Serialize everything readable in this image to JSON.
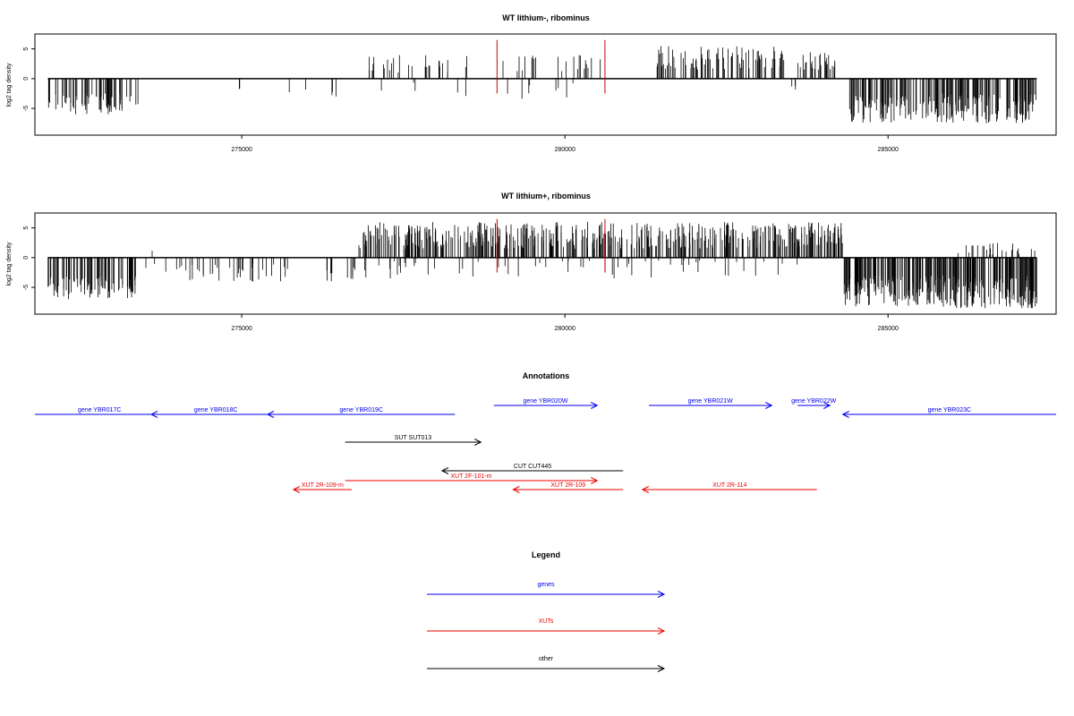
{
  "chart_data": [
    {
      "type": "bar",
      "title": "WT lithium-, ribominus",
      "xlabel": "",
      "ylabel": "log2 tag density",
      "xlim": [
        271800,
        287600
      ],
      "ylim": [
        -9.5,
        7.5
      ],
      "x_ticks": [
        275000,
        280000,
        285000
      ],
      "x_tick_labels": [
        "275000",
        "280000",
        "285000"
      ],
      "y_ticks": [
        5,
        0,
        -5
      ],
      "y_tick_labels": [
        "5",
        "0",
        "-5"
      ],
      "density_profile": [
        {
          "from": 272000,
          "to": 273400,
          "min": -6,
          "max": -2.5,
          "sign": -1,
          "count": 70
        },
        {
          "from": 274950,
          "to": 275000,
          "min": -2,
          "max": -1.2,
          "sign": -1,
          "count": 2
        },
        {
          "from": 275700,
          "to": 276000,
          "min": -3.8,
          "max": -1,
          "sign": -1,
          "count": 2
        },
        {
          "from": 276300,
          "to": 276500,
          "min": -3.5,
          "max": -2,
          "sign": -1,
          "count": 3
        },
        {
          "from": 276800,
          "to": 278600,
          "min": 1,
          "max": 4,
          "sign": 1,
          "count": 28
        },
        {
          "from": 277100,
          "to": 278500,
          "min": -3,
          "max": -0.5,
          "sign": -1,
          "count": 5
        },
        {
          "from": 279000,
          "to": 280700,
          "min": 1,
          "max": 4,
          "sign": 1,
          "count": 22
        },
        {
          "from": 279000,
          "to": 280800,
          "min": -3.5,
          "max": -0.5,
          "sign": -1,
          "count": 8
        },
        {
          "from": 281400,
          "to": 283400,
          "min": 1.5,
          "max": 5.5,
          "sign": 1,
          "count": 85
        },
        {
          "from": 283600,
          "to": 284200,
          "min": 1.5,
          "max": 4.5,
          "sign": 1,
          "count": 30
        },
        {
          "from": 283500,
          "to": 283650,
          "min": -2.5,
          "max": -1,
          "sign": -1,
          "count": 3
        },
        {
          "from": 284400,
          "to": 287300,
          "min": -7.5,
          "max": -2.5,
          "sign": -1,
          "count": 220
        }
      ],
      "highlight_x": [
        278950,
        280620
      ],
      "highlight_top": 6.5,
      "highlight_color": "#cc0000"
    },
    {
      "type": "bar",
      "title": "WT lithium+, ribominus",
      "xlabel": "",
      "ylabel": "log2 tag density",
      "xlim": [
        271800,
        287600
      ],
      "ylim": [
        -9.5,
        7.5
      ],
      "x_ticks": [
        275000,
        280000,
        285000
      ],
      "x_tick_labels": [
        "275000",
        "280000",
        "285000"
      ],
      "y_ticks": [
        5,
        0,
        -5
      ],
      "y_tick_labels": [
        "5",
        "0",
        "-5"
      ],
      "density_profile": [
        {
          "from": 272000,
          "to": 273400,
          "min": -7,
          "max": -3,
          "sign": -1,
          "count": 90
        },
        {
          "from": 273600,
          "to": 273700,
          "min": 1,
          "max": 1.5,
          "sign": 1,
          "count": 1
        },
        {
          "from": 273500,
          "to": 274100,
          "min": -2.5,
          "max": -1,
          "sign": -1,
          "count": 6
        },
        {
          "from": 274100,
          "to": 275800,
          "min": -4,
          "max": -1,
          "sign": -1,
          "count": 35
        },
        {
          "from": 276300,
          "to": 276800,
          "min": -4,
          "max": -1.5,
          "sign": -1,
          "count": 12
        },
        {
          "from": 276800,
          "to": 283700,
          "min": 1.5,
          "max": 6,
          "sign": 1,
          "count": 420
        },
        {
          "from": 276900,
          "to": 283700,
          "min": -3.5,
          "max": -0.5,
          "sign": -1,
          "count": 60
        },
        {
          "from": 283700,
          "to": 284300,
          "min": 2,
          "max": 6,
          "sign": 1,
          "count": 50
        },
        {
          "from": 284300,
          "to": 287300,
          "min": -8.5,
          "max": -3,
          "sign": -1,
          "count": 320
        },
        {
          "from": 285800,
          "to": 287300,
          "min": 0.5,
          "max": 2.5,
          "sign": 1,
          "count": 25
        }
      ],
      "highlight_x": [
        278950,
        280620
      ],
      "highlight_top": 6.5,
      "highlight_color": "#cc0000"
    }
  ],
  "annotations": {
    "title": "Annotations",
    "features": [
      {
        "label": "gene YBR017C",
        "from": 271800,
        "to": 273800,
        "row": 1,
        "dir": "none",
        "kind": "gene"
      },
      {
        "label": "gene YBR018C",
        "from": 273600,
        "to": 275600,
        "row": 1,
        "dir": "left",
        "kind": "gene"
      },
      {
        "label": "gene YBR019C",
        "from": 275400,
        "to": 278300,
        "row": 1,
        "dir": "left",
        "kind": "gene"
      },
      {
        "label": "gene YBR020W",
        "from": 278900,
        "to": 280500,
        "row": 0,
        "dir": "right",
        "kind": "gene"
      },
      {
        "label": "gene YBR021W",
        "from": 281300,
        "to": 283200,
        "row": 0,
        "dir": "right",
        "kind": "gene"
      },
      {
        "label": "gene YBR022W",
        "from": 283600,
        "to": 284100,
        "row": 0,
        "dir": "right",
        "kind": "gene"
      },
      {
        "label": "gene YBR023C",
        "from": 284300,
        "to": 287600,
        "row": 1,
        "dir": "left",
        "kind": "gene"
      },
      {
        "label": "SUT SUT013",
        "from": 276600,
        "to": 278700,
        "row": 2,
        "dir": "right",
        "kind": "other"
      },
      {
        "label": "CUT CUT445",
        "from": 278100,
        "to": 280900,
        "row": 3,
        "dir": "left",
        "kind": "other"
      },
      {
        "label": "XUT 2F-101-m",
        "from": 276600,
        "to": 280500,
        "row": 4,
        "dir": "right",
        "kind": "xut"
      },
      {
        "label": "XUT 2R-109-m",
        "from": 275800,
        "to": 276700,
        "row": 5,
        "dir": "left",
        "kind": "xut"
      },
      {
        "label": "XUT 2R-109",
        "from": 279200,
        "to": 280900,
        "row": 5,
        "dir": "left",
        "kind": "xut"
      },
      {
        "label": "XUT 2R-114",
        "from": 281200,
        "to": 283900,
        "row": 5,
        "dir": "left",
        "kind": "xut"
      }
    ]
  },
  "legend": {
    "title": "Legend",
    "items": [
      {
        "label": "genes",
        "kind": "gene"
      },
      {
        "label": "XUTs",
        "kind": "xut"
      },
      {
        "label": "other",
        "kind": "other"
      }
    ]
  },
  "colors": {
    "gene": "#0000ee",
    "xut": "#ee0000",
    "other": "#000000"
  }
}
